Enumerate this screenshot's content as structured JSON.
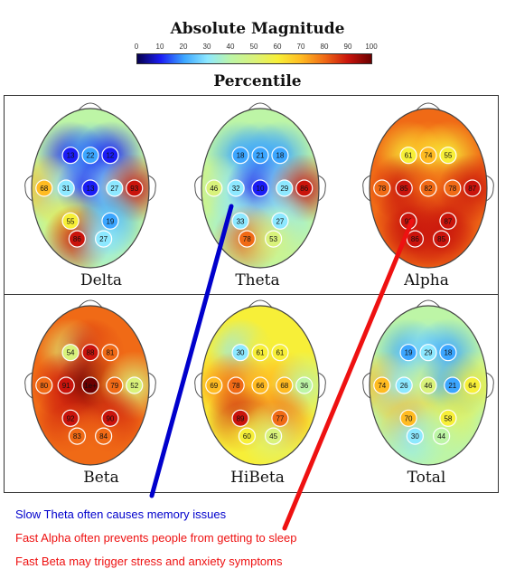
{
  "header": {
    "title": "Absolute Magnitude",
    "subtitle": "Percentile",
    "ticks": [
      "0",
      "10",
      "20",
      "30",
      "40",
      "50",
      "60",
      "70",
      "80",
      "90",
      "100"
    ]
  },
  "scale_colors": [
    "#06004d",
    "#1b1df5",
    "#3ca6ff",
    "#8de8ff",
    "#bdf5a6",
    "#d9f27b",
    "#f7ef38",
    "#ffbb22",
    "#f06a16",
    "#c9140c",
    "#6b0000"
  ],
  "maps": [
    {
      "label": "Delta",
      "values": [
        "13",
        "22",
        "12",
        "68",
        "31",
        "13",
        "27",
        "93",
        "55",
        "19",
        "86",
        "27"
      ]
    },
    {
      "label": "Theta",
      "values": [
        "18",
        "21",
        "18",
        "46",
        "32",
        "10",
        "29",
        "86",
        "33",
        "27",
        "78",
        "53"
      ]
    },
    {
      "label": "Alpha",
      "values": [
        "61",
        "74",
        "55",
        "78",
        "85",
        "82",
        "78",
        "87",
        "93",
        "87",
        "86",
        "85"
      ]
    },
    {
      "label": "Beta",
      "values": [
        "54",
        "88",
        "81",
        "80",
        "91",
        "1e+",
        "79",
        "52",
        "92",
        "90",
        "83",
        "84"
      ]
    },
    {
      "label": "HiBeta",
      "values": [
        "30",
        "61",
        "61",
        "69",
        "78",
        "66",
        "68",
        "36",
        "89",
        "77",
        "60",
        "45"
      ]
    },
    {
      "label": "Total",
      "values": [
        "19",
        "29",
        "18",
        "74",
        "26",
        "46",
        "21",
        "64",
        "70",
        "58",
        "30",
        "44"
      ]
    }
  ],
  "notes": {
    "theta": "Slow Theta often causes memory issues",
    "alpha": "Fast Alpha often prevents people from getting to sleep",
    "beta": "Fast Beta may trigger stress and anxiety symptoms",
    "theta_color": "#0000cc",
    "alpha_color": "#ee1111",
    "beta_color": "#ee1111"
  }
}
